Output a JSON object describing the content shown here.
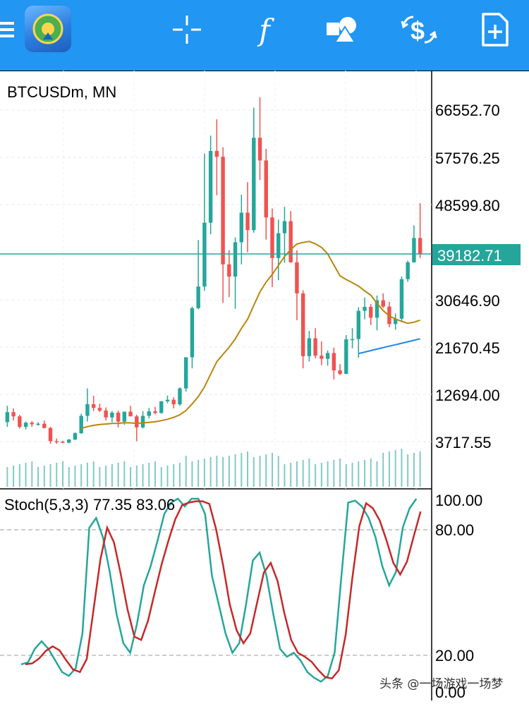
{
  "toolbar": {
    "icons": [
      "menu-icon",
      "app-logo",
      "crosshair-icon",
      "indicators-icon",
      "objects-icon",
      "trade-icon",
      "new-order-icon"
    ],
    "indicator_glyph": "f"
  },
  "chart": {
    "symbol_label": "BTCUSDm, MN",
    "price_ticks": [
      "66552.70",
      "57576.25",
      "48599.80",
      "30646.90",
      "21670.45",
      "12694.00",
      "3717.55"
    ],
    "current_price": "39182.71",
    "colors": {
      "bull": "#26a69a",
      "bear": "#ef5350",
      "ma": "#b8860b",
      "ma2": "#1e88e5",
      "stoch_main": "#26a69a",
      "stoch_signal": "#c62828",
      "toolbar": "#2196f3"
    }
  },
  "stoch": {
    "label": "Stoch(5,3,3) 77.35 83.06",
    "ticks": [
      "100.00",
      "80.00",
      "20.00",
      "0.00"
    ]
  },
  "watermark": "头条 @一场游戏一场梦"
}
